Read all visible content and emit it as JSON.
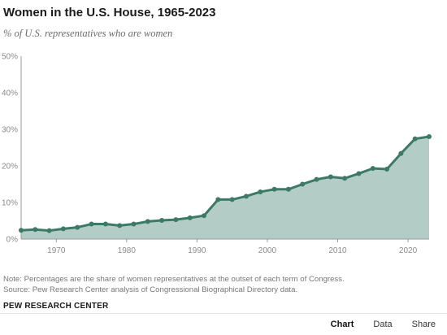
{
  "header": {
    "title": "Women in the U.S. House, 1965-2023",
    "subtitle": "% of U.S. representatives who are women"
  },
  "footer": {
    "note": "Note: Percentages are the share of women representatives at the outset of each term of Congress.",
    "source": "Source: Pew Research Center analysis of Congressional Biographical Directory data.",
    "org": "PEW RESEARCH CENTER"
  },
  "tabs": [
    {
      "label": "Chart",
      "active": true
    },
    {
      "label": "Data",
      "active": false
    },
    {
      "label": "Share",
      "active": false
    }
  ],
  "colors": {
    "line": "#3d7a66",
    "area": "#b3cdc6",
    "axis": "#999999",
    "tick_text": "#8a8a8a"
  },
  "chart_data": {
    "type": "area",
    "title": "Women in the U.S. House, 1965-2023",
    "subtitle": "% of U.S. representatives who are women",
    "xlim": [
      1965,
      2023
    ],
    "ylim": [
      0,
      50
    ],
    "x_ticks": [
      1970,
      1980,
      1990,
      2000,
      2010,
      2020
    ],
    "y_ticks": [
      0,
      10,
      20,
      30,
      40,
      50
    ],
    "y_tick_labels": [
      "0%",
      "10%",
      "20%",
      "30%",
      "40%",
      "50%"
    ],
    "grid": false,
    "series": [
      {
        "x": [
          1965,
          1967,
          1969,
          1971,
          1973,
          1975,
          1977,
          1979,
          1981,
          1983,
          1985,
          1987,
          1989,
          1991,
          1993,
          1995,
          1997,
          1999,
          2001,
          2003,
          2005,
          2007,
          2009,
          2011,
          2013,
          2015,
          2017,
          2019,
          2021,
          2023
        ],
        "y": [
          2.4,
          2.6,
          2.3,
          2.8,
          3.2,
          4.1,
          4.1,
          3.7,
          4.1,
          4.8,
          5.1,
          5.3,
          5.8,
          6.4,
          10.8,
          10.8,
          11.7,
          12.9,
          13.6,
          13.6,
          15.0,
          16.3,
          17.0,
          16.6,
          17.9,
          19.3,
          19.1,
          23.4,
          27.4,
          28.0
        ]
      }
    ]
  }
}
